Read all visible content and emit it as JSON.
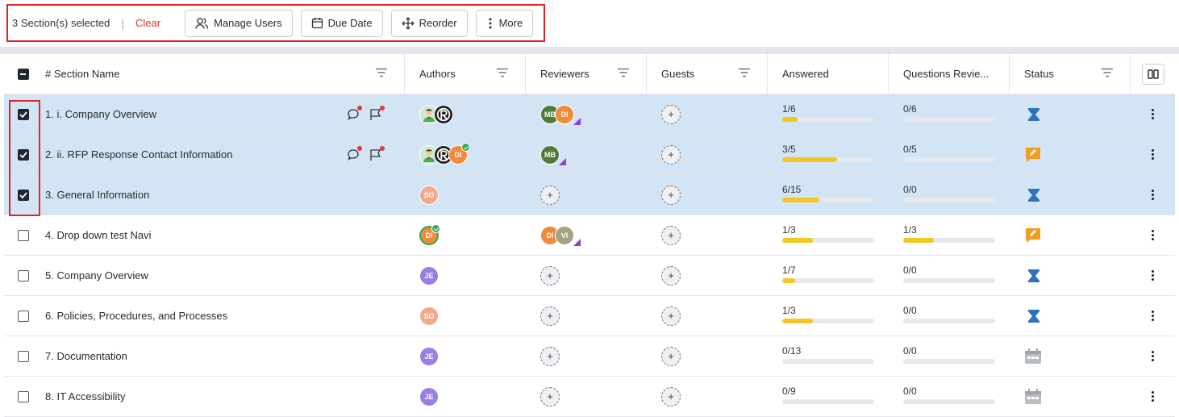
{
  "toolbar": {
    "selection_text": "3 Section(s) selected",
    "separator": "|",
    "clear_label": "Clear",
    "buttons": [
      {
        "label": "Manage Users",
        "icon": "users-icon"
      },
      {
        "label": "Due Date",
        "icon": "calendar-icon"
      },
      {
        "label": "Reorder",
        "icon": "move-icon"
      },
      {
        "label": "More",
        "icon": "kebab-icon"
      }
    ]
  },
  "columns": {
    "section_name": "# Section Name",
    "authors": "Authors",
    "reviewers": "Reviewers",
    "guests": "Guests",
    "answered": "Answered",
    "questions_reviewed": "Questions Revie...",
    "status": "Status"
  },
  "colors": {
    "selected_row": "#d3e5f5",
    "progress_fill": "#f3c623",
    "status_blue": "#2f73b8",
    "status_orange": "#f39c1f",
    "status_gray": "#b9bcc2",
    "highlight_red": "#e02424"
  },
  "rows": [
    {
      "num": "1.",
      "name": "i. Company Overview",
      "selected": true,
      "has_icons": true,
      "authors": [
        "person-icon",
        "logo-icon"
      ],
      "reviewers": [
        {
          "initials": "MB",
          "color": "#4d7c3a"
        },
        {
          "initials": "DI",
          "color": "#f08a3c"
        }
      ],
      "answered": "1/6",
      "answered_frac": 0.167,
      "reviewed": "0/6",
      "reviewed_frac": 0,
      "status": "hourglass-icon"
    },
    {
      "num": "2.",
      "name": "ii. RFP Response Contact Information",
      "selected": true,
      "has_icons": true,
      "authors": [
        "person-icon",
        "logo-icon",
        "DI"
      ],
      "reviewers": [
        {
          "initials": "MB",
          "color": "#4d7c3a"
        }
      ],
      "answered": "3/5",
      "answered_frac": 0.6,
      "reviewed": "0/5",
      "reviewed_frac": 0,
      "status": "edit-icon"
    },
    {
      "num": "3.",
      "name": "General Information",
      "selected": true,
      "has_icons": false,
      "authors": [
        {
          "initials": "SO",
          "color": "#f4a98a"
        }
      ],
      "reviewers": [],
      "answered": "6/15",
      "answered_frac": 0.4,
      "reviewed": "0/0",
      "reviewed_frac": 0,
      "status": "hourglass-icon"
    },
    {
      "num": "4.",
      "name": "Drop down test Navi",
      "selected": false,
      "has_icons": false,
      "authors": [
        {
          "initials": "DI",
          "color": "#f08a3c"
        }
      ],
      "reviewers": [
        {
          "initials": "DI",
          "color": "#f08a3c"
        },
        {
          "initials": "VI",
          "color": "#a8a285"
        }
      ],
      "answered": "1/3",
      "answered_frac": 0.333,
      "reviewed": "1/3",
      "reviewed_frac": 0.333,
      "status": "edit-icon"
    },
    {
      "num": "5.",
      "name": "Company Overview",
      "selected": false,
      "has_icons": false,
      "authors": [
        {
          "initials": "JE",
          "color": "#9b7fe0"
        }
      ],
      "reviewers": [],
      "answered": "1/7",
      "answered_frac": 0.143,
      "reviewed": "0/0",
      "reviewed_frac": 0,
      "status": "hourglass-icon"
    },
    {
      "num": "6.",
      "name": "Policies, Procedures, and Processes",
      "selected": false,
      "has_icons": false,
      "authors": [
        {
          "initials": "SO",
          "color": "#f4a98a"
        }
      ],
      "reviewers": [],
      "answered": "1/3",
      "answered_frac": 0.333,
      "reviewed": "0/0",
      "reviewed_frac": 0,
      "status": "hourglass-icon"
    },
    {
      "num": "7.",
      "name": "Documentation",
      "selected": false,
      "has_icons": false,
      "authors": [
        {
          "initials": "JE",
          "color": "#9b7fe0"
        }
      ],
      "reviewers": [],
      "answered": "0/13",
      "answered_frac": 0,
      "reviewed": "0/0",
      "reviewed_frac": 0,
      "status": "calendar-icon"
    },
    {
      "num": "8.",
      "name": "IT Accessibility",
      "selected": false,
      "has_icons": false,
      "authors": [
        {
          "initials": "JE",
          "color": "#9b7fe0"
        }
      ],
      "reviewers": [],
      "answered": "0/9",
      "answered_frac": 0,
      "reviewed": "0/0",
      "reviewed_frac": 0,
      "status": "calendar-icon"
    }
  ]
}
